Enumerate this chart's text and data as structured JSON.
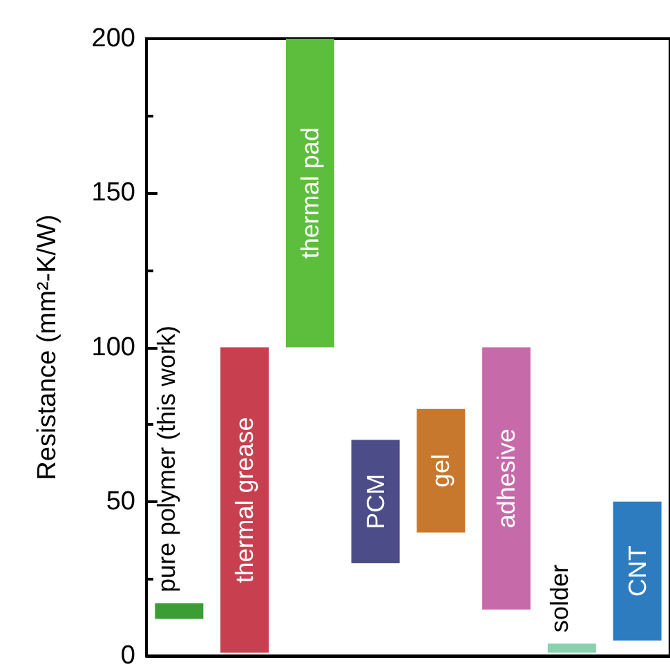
{
  "chart_data": {
    "type": "bar",
    "ylabel": "Resistance (mm²-K/W)",
    "categories": [
      "pure polymer (this work)",
      "thermal grease",
      "thermal pad",
      "PCM",
      "gel",
      "adhesive",
      "solder",
      "CNT"
    ],
    "base": [
      12,
      1,
      100,
      30,
      40,
      15,
      1,
      5
    ],
    "values": [
      5,
      99,
      100,
      40,
      40,
      85,
      3,
      45
    ],
    "colors": [
      "#3a9e34",
      "#c8404f",
      "#5cbe3c",
      "#4c4c88",
      "#c8782c",
      "#c66aaa",
      "#8ad2ae",
      "#2e7cc0"
    ],
    "ylim": [
      0,
      200
    ],
    "yticks": [
      0,
      50,
      100,
      150,
      200
    ],
    "grid": false
  }
}
